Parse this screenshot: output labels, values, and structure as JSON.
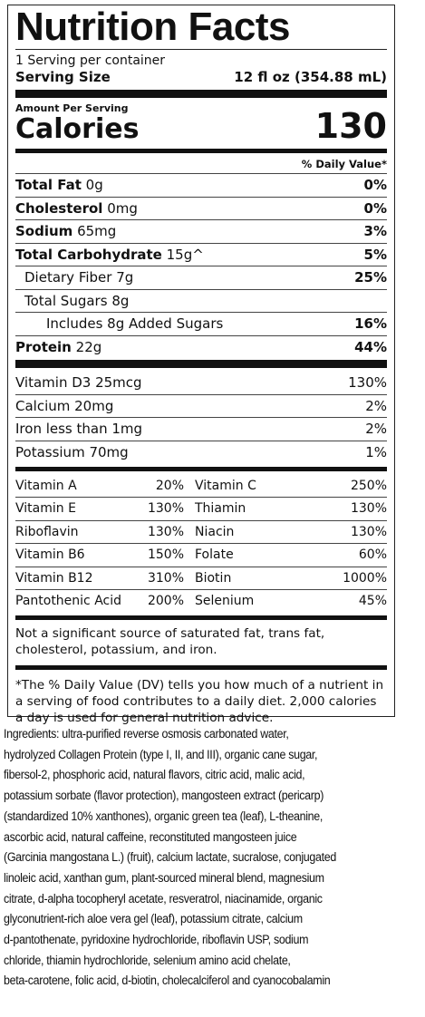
{
  "title": "Nutrition Facts",
  "servings": "1 Serving per container",
  "serving_size_label": "Serving Size",
  "serving_size": "12 fl oz (354.88 mL)",
  "amount_per_serving": "Amount Per Serving",
  "calories_label": "Calories",
  "calories": 130,
  "dv_header": "% Daily Value*",
  "nutrients": [
    {
      "name": "Total Fat",
      "amount": "0g",
      "dv": "0%"
    },
    {
      "name": "Cholesterol",
      "amount": "0mg",
      "dv": "0%"
    },
    {
      "name": "Sodium",
      "amount": "65mg",
      "dv": "3%"
    },
    {
      "name": "Total Carbohydrate",
      "amount": "15g^",
      "dv": "5%"
    },
    {
      "name": "Dietary Fiber",
      "amount": "7g",
      "dv": "25%"
    },
    {
      "name": "Total Sugars",
      "amount": "8g"
    },
    {
      "name": "Includes 8g Added Sugars",
      "dv": "16%"
    },
    {
      "name": "Protein",
      "amount": "22g",
      "dv": "44%"
    }
  ],
  "minerals": [
    {
      "name": "Vitamin D3 25mcg",
      "dv": "130%"
    },
    {
      "name": "Calcium 20mg",
      "dv": "2%"
    },
    {
      "name": "Iron less than 1mg",
      "dv": "2%"
    },
    {
      "name": "Potassium 70mg",
      "dv": "1%"
    }
  ],
  "vitamins": [
    [
      "Vitamin A",
      "20%",
      "Vitamin C",
      "250%"
    ],
    [
      "Vitamin E",
      "130%",
      "Thiamin",
      "130%"
    ],
    [
      "Riboflavin",
      "130%",
      "Niacin",
      "130%"
    ],
    [
      "Vitamin B6",
      "150%",
      "Folate",
      "60%"
    ],
    [
      "Vitamin B12",
      "310%",
      "Biotin",
      "1000%"
    ],
    [
      "Pantothenic Acid",
      "200%",
      "Selenium",
      "45%"
    ]
  ],
  "note": "Not a significant source of saturated fat, trans fat, cholesterol, potassium, and iron.",
  "footnote": "*The % Daily Value (DV) tells you how much of a nutrient in a serving of food contributes to a daily diet. 2,000 calories a day is used for general nutrition advice.",
  "ingredients": [
    "Ingredients: ultra-purified reverse osmosis carbonated water,",
    "hydrolyzed Collagen Protein (type I, II, and III), organic cane sugar,",
    "fibersol-2, phosphoric acid, natural flavors, citric acid, malic acid,",
    "potassium sorbate (flavor protection), mangosteen extract (pericarp)",
    "(standardized 10% xanthones), organic green tea (leaf), L-theanine,",
    "ascorbic acid, natural caffeine, reconstituted mangosteen juice",
    "(Garcinia mangostana L.) (fruit), calcium lactate, sucralose, conjugated",
    "linoleic acid, xanthan gum, plant-sourced mineral blend, magnesium",
    "citrate, d-alpha tocopheryl acetate, resveratrol, niacinamide, organic",
    "glyconutrient-rich aloe vera gel (leaf), potassium citrate, calcium",
    "d-pantothenate, pyridoxine hydrochloride, riboflavin USP, sodium",
    "chloride, thiamin hydrochloride, selenium amino acid chelate,",
    "beta-carotene, folic acid, d-biotin, cholecalciferol and cyanocobalamin"
  ]
}
